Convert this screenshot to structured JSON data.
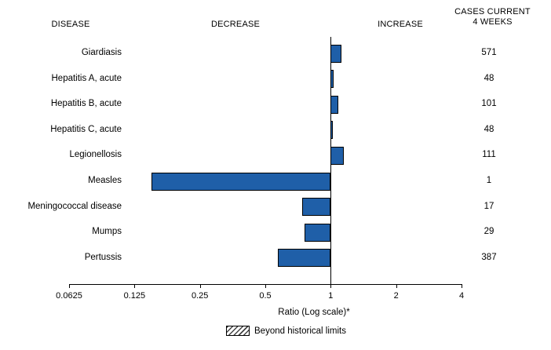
{
  "header": {
    "disease": "DISEASE",
    "decrease": "DECREASE",
    "increase": "INCREASE",
    "cases_line1": "CASES CURRENT",
    "cases_line2": "4 WEEKS"
  },
  "chart_data": {
    "type": "bar",
    "orientation": "horizontal",
    "x_scale": "log",
    "x_axis": {
      "min": 0.0625,
      "max": 4,
      "ticks": [
        0.0625,
        0.125,
        0.25,
        0.5,
        1,
        2,
        4
      ],
      "tick_labels": [
        "0.0625",
        "0.125",
        "0.25",
        "0.5",
        "1",
        "2",
        "4"
      ],
      "label": "Ratio (Log scale)*"
    },
    "baseline": 1,
    "bar_color": "#1F5FA8",
    "rows": [
      {
        "disease": "Giardiasis",
        "ratio": 1.12,
        "cases": "571"
      },
      {
        "disease": "Hepatitis A, acute",
        "ratio": 1.03,
        "cases": "48"
      },
      {
        "disease": "Hepatitis B, acute",
        "ratio": 1.08,
        "cases": "101"
      },
      {
        "disease": "Hepatitis C, acute",
        "ratio": 1.02,
        "cases": "48"
      },
      {
        "disease": "Legionellosis",
        "ratio": 1.15,
        "cases": "111"
      },
      {
        "disease": "Measles",
        "ratio": 0.15,
        "cases": "1"
      },
      {
        "disease": "Meningococcal disease",
        "ratio": 0.74,
        "cases": "17"
      },
      {
        "disease": "Mumps",
        "ratio": 0.76,
        "cases": "29"
      },
      {
        "disease": "Pertussis",
        "ratio": 0.57,
        "cases": "387"
      }
    ],
    "legend": {
      "swatch": "hatched",
      "label": "Beyond historical limits"
    }
  }
}
